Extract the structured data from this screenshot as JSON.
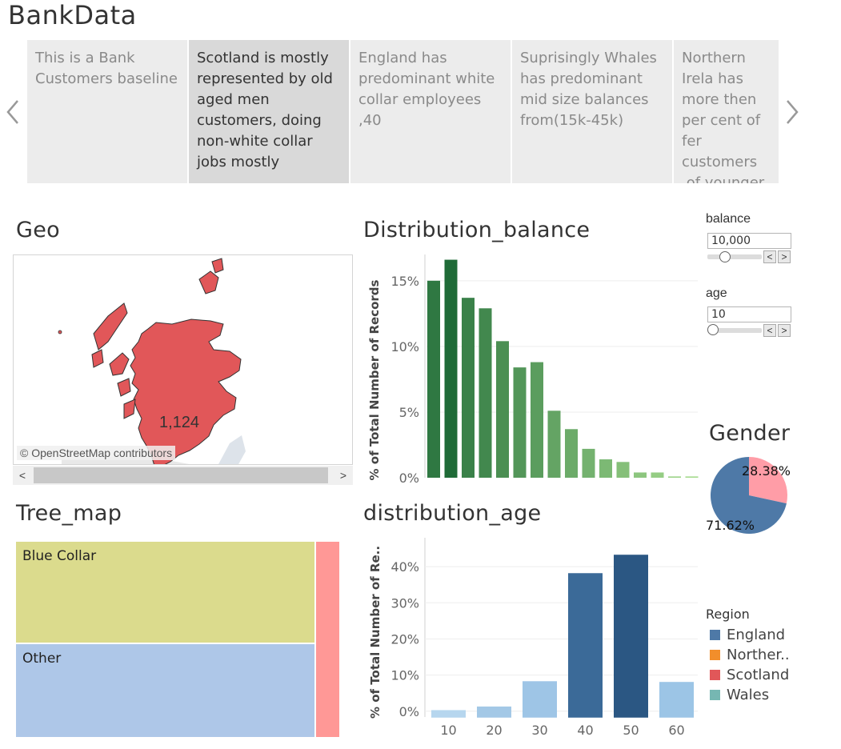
{
  "app": {
    "title": "BankData"
  },
  "story": {
    "points": [
      {
        "text": "This is a Bank Customers baseline",
        "active": false
      },
      {
        "text": "Scotland is mostly represented by old aged men customers, doing non-white collar jobs mostly",
        "active": true
      },
      {
        "text": "England has predominant white collar employees ,40",
        "active": false
      },
      {
        "text": "Suprisingly Whales has predominant mid size balances from(15k-45k)",
        "active": false
      },
      {
        "text": " Northern Irela has more then per cent of fer customers ,of younger age g",
        "active": false
      }
    ],
    "prev_icon": "chevron-left-icon",
    "next_icon": "chevron-right-icon"
  },
  "geo": {
    "title": "Geo",
    "label": "1,124",
    "credit": "© OpenStreetMap contributors",
    "fill_color": "#e15759",
    "scroll_left": "<",
    "scroll_right": ">"
  },
  "balance_chart": {
    "title": "Distribution_balance",
    "ylabel": "% of Total Number of Records",
    "yticks": [
      "15%",
      "10%",
      "5%",
      "0%"
    ],
    "chart_data": {
      "type": "bar",
      "values": [
        15.0,
        16.6,
        13.7,
        12.9,
        10.4,
        8.4,
        8.8,
        5.1,
        3.7,
        2.2,
        1.4,
        1.2,
        0.4,
        0.4,
        0.1,
        0.1
      ],
      "ylim": [
        0,
        17
      ],
      "tick_values": [
        15,
        10,
        5,
        0
      ],
      "color_scale": [
        "#1f6b37",
        "#a6db8f"
      ],
      "grid": true
    }
  },
  "parameters": {
    "balance": {
      "label": "balance",
      "value": "10,000",
      "level": 0.28
    },
    "age": {
      "label": "age",
      "value": "10",
      "level": 0.0
    },
    "step_prev": "<",
    "step_next": ">"
  },
  "gender": {
    "title": "Gender",
    "chart_data": {
      "type": "pie",
      "slices": [
        {
          "label": "28.38%",
          "value": 28.38,
          "color": "#ff9da7"
        },
        {
          "label": "71.62%",
          "value": 71.62,
          "color": "#4e79a7"
        }
      ]
    }
  },
  "tree_map": {
    "title": "Tree_map",
    "chart_data": {
      "type": "treemap",
      "cells": [
        {
          "label": "Blue Collar",
          "color": "#dbdb8d"
        },
        {
          "label": "Other",
          "color": "#aec7e8"
        },
        {
          "label": "",
          "color": "#ff9896"
        }
      ]
    }
  },
  "age_chart": {
    "title": "distribution_age",
    "ylabel": "% of Total Number of Re..",
    "chart_data": {
      "type": "bar",
      "x": [
        10,
        20,
        30,
        40,
        50,
        60
      ],
      "values": [
        0.3,
        1.3,
        8.3,
        38.2,
        43.3,
        8.1
      ],
      "xtick_labels": [
        "10",
        "20",
        "30",
        "40",
        "50",
        "60"
      ],
      "ytick_labels": [
        "40%",
        "30%",
        "20%",
        "10%",
        "0%"
      ],
      "tick_values": [
        40,
        30,
        20,
        10,
        0
      ],
      "ylim": [
        -1.6,
        48
      ],
      "colors": [
        "#b6d6ee",
        "#a3c8e6",
        "#9ec5e6",
        "#3b6a98",
        "#2b5783",
        "#9cc5e6"
      ],
      "grid": true
    }
  },
  "region_legend": {
    "title": "Region",
    "items": [
      {
        "label": "England",
        "color": "#4e79a7"
      },
      {
        "label": "Norther..",
        "color": "#f28e2b"
      },
      {
        "label": "Scotland",
        "color": "#e15759"
      },
      {
        "label": "Wales",
        "color": "#76b7b2"
      }
    ]
  }
}
